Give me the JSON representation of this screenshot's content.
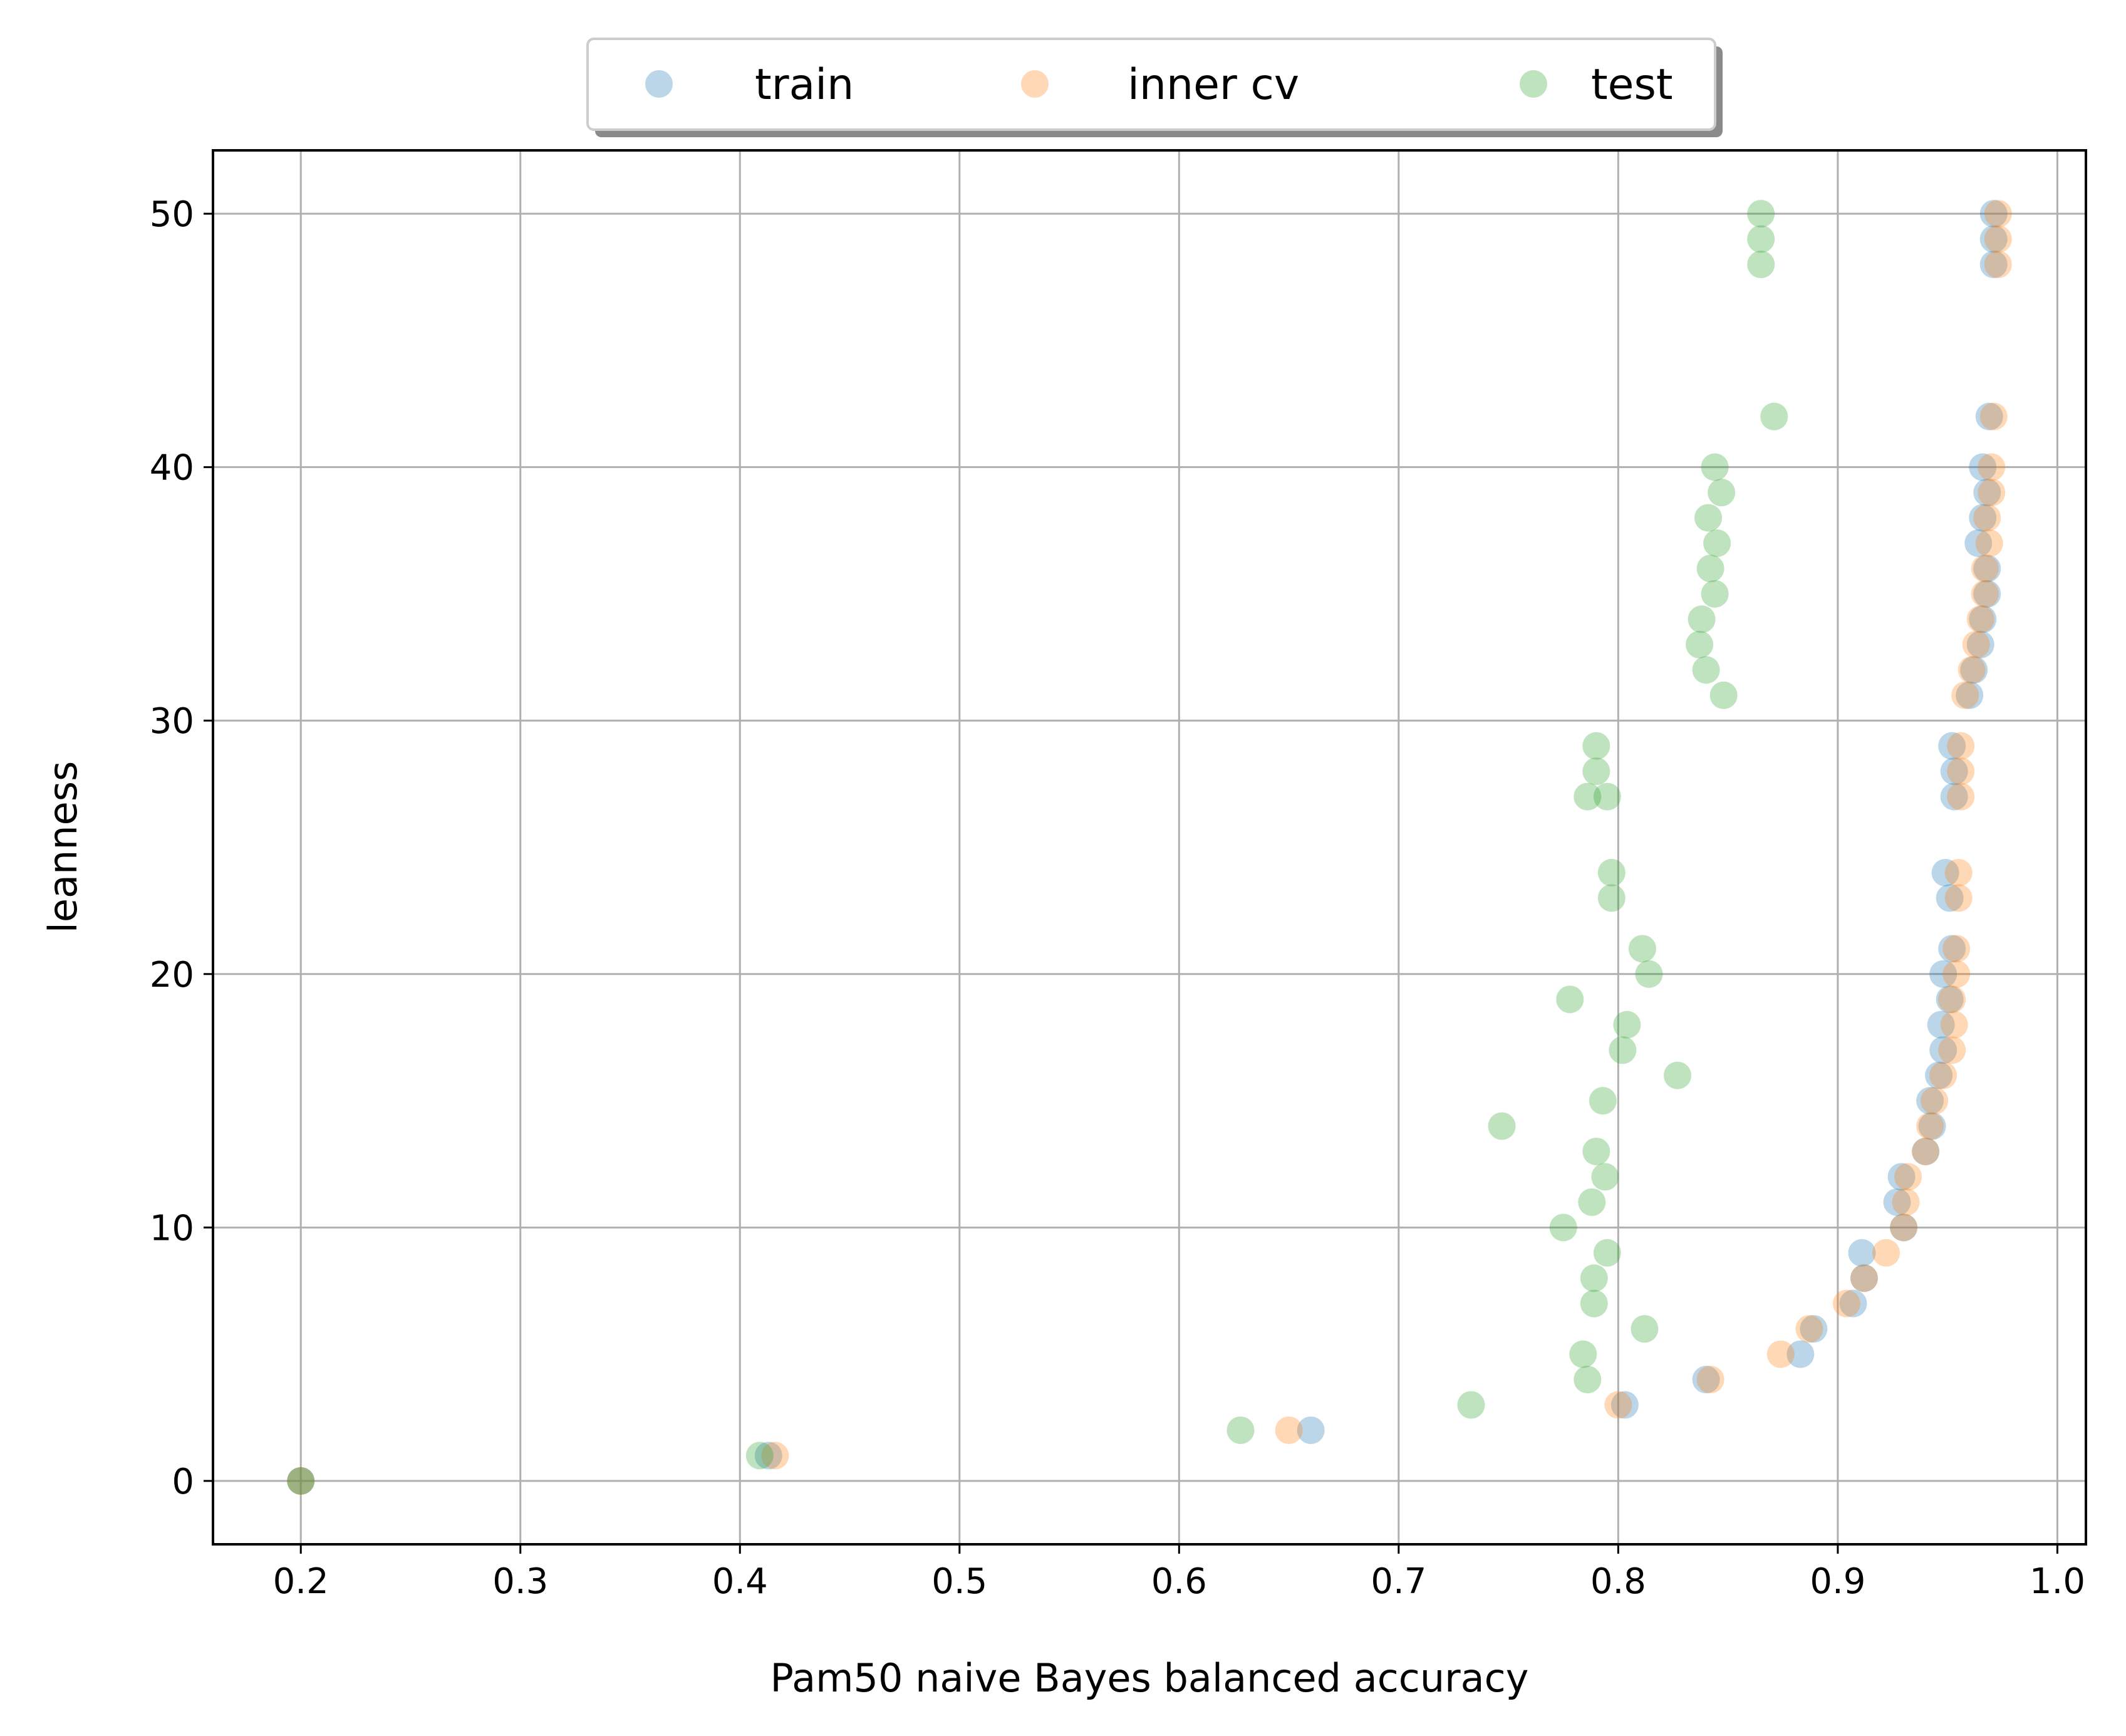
{
  "chart_data": {
    "type": "scatter",
    "xlabel": "Pam50 naive Bayes balanced accuracy",
    "ylabel": "leanness",
    "xlim": [
      0.16,
      1.013
    ],
    "ylim": [
      -2.5,
      52.5
    ],
    "xticks": [
      0.2,
      0.3,
      0.4,
      0.5,
      0.6,
      0.7,
      0.8,
      0.9,
      1.0
    ],
    "xtick_labels": [
      "0.2",
      "0.3",
      "0.4",
      "0.5",
      "0.6",
      "0.7",
      "0.8",
      "0.9",
      "1.0"
    ],
    "yticks": [
      0,
      10,
      20,
      30,
      40,
      50
    ],
    "ytick_labels": [
      "0",
      "10",
      "20",
      "30",
      "40",
      "50"
    ],
    "grid": true,
    "legend_position": "top-center, above plot",
    "series": [
      {
        "name": "train",
        "color": "#1f77b4",
        "points": [
          [
            0.2,
            0
          ],
          [
            0.413,
            1
          ],
          [
            0.66,
            2
          ],
          [
            0.803,
            3
          ],
          [
            0.84,
            4
          ],
          [
            0.883,
            5
          ],
          [
            0.889,
            6
          ],
          [
            0.907,
            7
          ],
          [
            0.912,
            8
          ],
          [
            0.911,
            9
          ],
          [
            0.93,
            10
          ],
          [
            0.927,
            11
          ],
          [
            0.929,
            12
          ],
          [
            0.94,
            13
          ],
          [
            0.943,
            14
          ],
          [
            0.942,
            15
          ],
          [
            0.946,
            16
          ],
          [
            0.948,
            17
          ],
          [
            0.947,
            18
          ],
          [
            0.951,
            19
          ],
          [
            0.948,
            20
          ],
          [
            0.952,
            21
          ],
          [
            0.951,
            23
          ],
          [
            0.949,
            24
          ],
          [
            0.953,
            27
          ],
          [
            0.953,
            28
          ],
          [
            0.952,
            29
          ],
          [
            0.96,
            31
          ],
          [
            0.962,
            32
          ],
          [
            0.965,
            33
          ],
          [
            0.966,
            34
          ],
          [
            0.968,
            35
          ],
          [
            0.968,
            36
          ],
          [
            0.964,
            37
          ],
          [
            0.966,
            38
          ],
          [
            0.968,
            39
          ],
          [
            0.966,
            40
          ],
          [
            0.969,
            42
          ],
          [
            0.971,
            48
          ],
          [
            0.971,
            49
          ],
          [
            0.971,
            50
          ]
        ]
      },
      {
        "name": "inner cv",
        "color": "#ff7f0e",
        "points": [
          [
            0.2,
            0
          ],
          [
            0.416,
            1
          ],
          [
            0.65,
            2
          ],
          [
            0.8,
            3
          ],
          [
            0.842,
            4
          ],
          [
            0.874,
            5
          ],
          [
            0.887,
            6
          ],
          [
            0.904,
            7
          ],
          [
            0.912,
            8
          ],
          [
            0.922,
            9
          ],
          [
            0.93,
            10
          ],
          [
            0.931,
            11
          ],
          [
            0.932,
            12
          ],
          [
            0.94,
            13
          ],
          [
            0.942,
            14
          ],
          [
            0.944,
            15
          ],
          [
            0.948,
            16
          ],
          [
            0.952,
            17
          ],
          [
            0.953,
            18
          ],
          [
            0.952,
            19
          ],
          [
            0.954,
            20
          ],
          [
            0.954,
            21
          ],
          [
            0.955,
            23
          ],
          [
            0.955,
            24
          ],
          [
            0.956,
            27
          ],
          [
            0.956,
            28
          ],
          [
            0.956,
            29
          ],
          [
            0.958,
            31
          ],
          [
            0.961,
            32
          ],
          [
            0.963,
            33
          ],
          [
            0.965,
            34
          ],
          [
            0.967,
            35
          ],
          [
            0.967,
            36
          ],
          [
            0.969,
            37
          ],
          [
            0.968,
            38
          ],
          [
            0.97,
            39
          ],
          [
            0.97,
            40
          ],
          [
            0.971,
            42
          ],
          [
            0.973,
            48
          ],
          [
            0.973,
            49
          ],
          [
            0.973,
            50
          ]
        ]
      },
      {
        "name": "test",
        "color": "#2ca02c",
        "points": [
          [
            0.2,
            0
          ],
          [
            0.409,
            1
          ],
          [
            0.628,
            2
          ],
          [
            0.733,
            3
          ],
          [
            0.786,
            4
          ],
          [
            0.784,
            5
          ],
          [
            0.812,
            6
          ],
          [
            0.789,
            7
          ],
          [
            0.789,
            8
          ],
          [
            0.795,
            9
          ],
          [
            0.775,
            10
          ],
          [
            0.788,
            11
          ],
          [
            0.794,
            12
          ],
          [
            0.79,
            13
          ],
          [
            0.747,
            14
          ],
          [
            0.793,
            15
          ],
          [
            0.827,
            16
          ],
          [
            0.802,
            17
          ],
          [
            0.804,
            18
          ],
          [
            0.778,
            19
          ],
          [
            0.814,
            20
          ],
          [
            0.811,
            21
          ],
          [
            0.797,
            23
          ],
          [
            0.797,
            24
          ],
          [
            0.786,
            27
          ],
          [
            0.795,
            27
          ],
          [
            0.79,
            28
          ],
          [
            0.79,
            29
          ],
          [
            0.848,
            31
          ],
          [
            0.84,
            32
          ],
          [
            0.837,
            33
          ],
          [
            0.838,
            34
          ],
          [
            0.844,
            35
          ],
          [
            0.842,
            36
          ],
          [
            0.845,
            37
          ],
          [
            0.841,
            38
          ],
          [
            0.847,
            39
          ],
          [
            0.844,
            40
          ],
          [
            0.871,
            42
          ],
          [
            0.865,
            48
          ],
          [
            0.865,
            49
          ],
          [
            0.865,
            50
          ]
        ]
      }
    ]
  }
}
